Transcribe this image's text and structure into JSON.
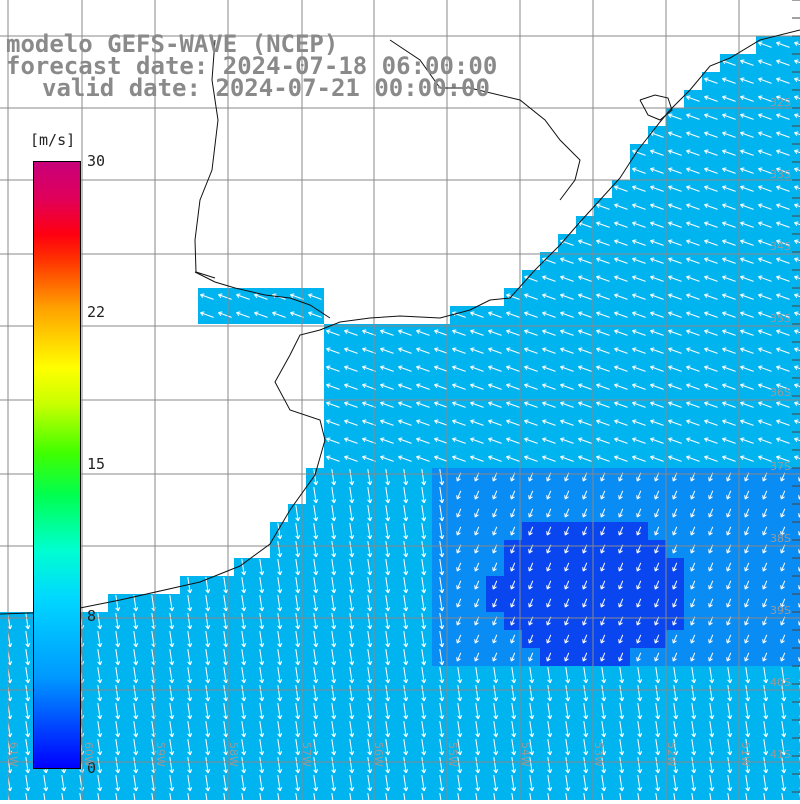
{
  "header": {
    "title": "modelo GEFS-WAVE (NCEP)",
    "forecast": "forecast date: 2024-07-18 06:00:00",
    "valid": "valid date: 2024-07-21 00:00:00"
  },
  "colorbar": {
    "unit": "[m/s]",
    "ticks": [
      "30",
      "22",
      "15",
      "8",
      "0"
    ],
    "tick_values": [
      30,
      22,
      15,
      8,
      0
    ],
    "colors": [
      "#0000ff",
      "#0099ff",
      "#00d8ff",
      "#00ffd0",
      "#00ff50",
      "#c8ff00",
      "#ffff00",
      "#ffa000",
      "#ff0010",
      "#c8007a"
    ]
  },
  "map": {
    "lat_labels": [
      "32S",
      "33S",
      "34S",
      "35S",
      "36S",
      "37S",
      "38S",
      "39S",
      "40S",
      "41S"
    ],
    "lon_labels": [
      "61W",
      "60W",
      "59W",
      "58W",
      "57W",
      "56W",
      "55W",
      "54W",
      "53W",
      "52W",
      "51W"
    ],
    "land_color": "#ffffff",
    "grid_color": "#888888",
    "arrow_color": "#ffffff",
    "ocean_colors": {
      "strong": "#00b4f0",
      "moderate": "#0a8cf5",
      "weak": "#0a46f0"
    }
  }
}
